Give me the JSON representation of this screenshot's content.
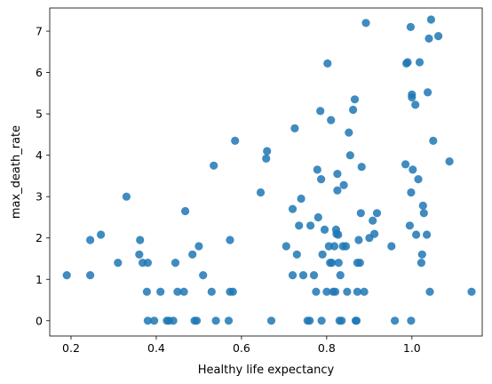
{
  "chart_data": {
    "type": "scatter",
    "title": "",
    "xlabel": "Healthy life expectancy",
    "ylabel": "max_death_rate",
    "xlim": [
      0.15,
      1.165
    ],
    "ylim": [
      -0.37,
      7.56
    ],
    "xticks": [
      0.2,
      0.4,
      0.6,
      0.8,
      1.0
    ],
    "xtick_labels": [
      "0.2",
      "0.4",
      "0.6",
      "0.8",
      "1.0"
    ],
    "yticks": [
      0,
      1,
      2,
      3,
      4,
      5,
      6,
      7
    ],
    "ytick_labels": [
      "0",
      "1",
      "2",
      "3",
      "4",
      "5",
      "6",
      "7"
    ],
    "grid": false,
    "marker_color": "#1f77b4",
    "marker_alpha": 0.85,
    "points": [
      {
        "x": 0.19,
        "y": 1.1
      },
      {
        "x": 0.245,
        "y": 1.1
      },
      {
        "x": 0.245,
        "y": 1.95
      },
      {
        "x": 0.27,
        "y": 2.08
      },
      {
        "x": 0.31,
        "y": 1.4
      },
      {
        "x": 0.33,
        "y": 3.0
      },
      {
        "x": 0.36,
        "y": 1.6
      },
      {
        "x": 0.362,
        "y": 1.95
      },
      {
        "x": 0.368,
        "y": 1.4
      },
      {
        "x": 0.378,
        "y": 0.7
      },
      {
        "x": 0.38,
        "y": 1.4
      },
      {
        "x": 0.38,
        "y": 0.0
      },
      {
        "x": 0.395,
        "y": 0.0
      },
      {
        "x": 0.41,
        "y": 0.7
      },
      {
        "x": 0.425,
        "y": 0.0
      },
      {
        "x": 0.43,
        "y": 0.0
      },
      {
        "x": 0.44,
        "y": 0.0
      },
      {
        "x": 0.445,
        "y": 1.4
      },
      {
        "x": 0.45,
        "y": 0.7
      },
      {
        "x": 0.465,
        "y": 0.7
      },
      {
        "x": 0.468,
        "y": 2.65
      },
      {
        "x": 0.485,
        "y": 1.6
      },
      {
        "x": 0.49,
        "y": 0.0
      },
      {
        "x": 0.495,
        "y": 0.0
      },
      {
        "x": 0.5,
        "y": 1.8
      },
      {
        "x": 0.51,
        "y": 1.1
      },
      {
        "x": 0.53,
        "y": 0.7
      },
      {
        "x": 0.535,
        "y": 3.75
      },
      {
        "x": 0.54,
        "y": 0.0
      },
      {
        "x": 0.57,
        "y": 0.0
      },
      {
        "x": 0.573,
        "y": 0.7
      },
      {
        "x": 0.573,
        "y": 1.95
      },
      {
        "x": 0.58,
        "y": 0.7
      },
      {
        "x": 0.585,
        "y": 4.35
      },
      {
        "x": 0.645,
        "y": 3.1
      },
      {
        "x": 0.658,
        "y": 3.92
      },
      {
        "x": 0.66,
        "y": 4.1
      },
      {
        "x": 0.67,
        "y": 0.0
      },
      {
        "x": 0.705,
        "y": 1.8
      },
      {
        "x": 0.72,
        "y": 1.1
      },
      {
        "x": 0.72,
        "y": 2.7
      },
      {
        "x": 0.725,
        "y": 4.65
      },
      {
        "x": 0.73,
        "y": 1.6
      },
      {
        "x": 0.735,
        "y": 2.3
      },
      {
        "x": 0.74,
        "y": 2.95
      },
      {
        "x": 0.745,
        "y": 1.1
      },
      {
        "x": 0.755,
        "y": 0.0
      },
      {
        "x": 0.76,
        "y": 0.0
      },
      {
        "x": 0.762,
        "y": 2.3
      },
      {
        "x": 0.77,
        "y": 1.1
      },
      {
        "x": 0.775,
        "y": 0.7
      },
      {
        "x": 0.778,
        "y": 3.65
      },
      {
        "x": 0.78,
        "y": 2.5
      },
      {
        "x": 0.785,
        "y": 5.07
      },
      {
        "x": 0.787,
        "y": 3.42
      },
      {
        "x": 0.788,
        "y": 0.0
      },
      {
        "x": 0.79,
        "y": 1.6
      },
      {
        "x": 0.795,
        "y": 2.2
      },
      {
        "x": 0.8,
        "y": 0.7
      },
      {
        "x": 0.802,
        "y": 6.22
      },
      {
        "x": 0.805,
        "y": 1.8
      },
      {
        "x": 0.808,
        "y": 1.4
      },
      {
        "x": 0.81,
        "y": 4.85
      },
      {
        "x": 0.812,
        "y": 1.4
      },
      {
        "x": 0.815,
        "y": 0.7
      },
      {
        "x": 0.818,
        "y": 1.8
      },
      {
        "x": 0.82,
        "y": 0.7
      },
      {
        "x": 0.822,
        "y": 2.2
      },
      {
        "x": 0.823,
        "y": 2.1
      },
      {
        "x": 0.825,
        "y": 3.15
      },
      {
        "x": 0.825,
        "y": 3.55
      },
      {
        "x": 0.827,
        "y": 2.08
      },
      {
        "x": 0.828,
        "y": 1.4
      },
      {
        "x": 0.83,
        "y": 0.0
      },
      {
        "x": 0.832,
        "y": 1.1
      },
      {
        "x": 0.835,
        "y": 0.0
      },
      {
        "x": 0.838,
        "y": 1.8
      },
      {
        "x": 0.84,
        "y": 3.28
      },
      {
        "x": 0.845,
        "y": 1.8
      },
      {
        "x": 0.848,
        "y": 0.7
      },
      {
        "x": 0.852,
        "y": 4.55
      },
      {
        "x": 0.855,
        "y": 4.0
      },
      {
        "x": 0.862,
        "y": 5.1
      },
      {
        "x": 0.866,
        "y": 5.35
      },
      {
        "x": 0.868,
        "y": 0.0
      },
      {
        "x": 0.87,
        "y": 0.0
      },
      {
        "x": 0.872,
        "y": 1.4
      },
      {
        "x": 0.872,
        "y": 0.7
      },
      {
        "x": 0.875,
        "y": 1.95
      },
      {
        "x": 0.878,
        "y": 1.4
      },
      {
        "x": 0.88,
        "y": 2.6
      },
      {
        "x": 0.882,
        "y": 3.72
      },
      {
        "x": 0.888,
        "y": 0.7
      },
      {
        "x": 0.892,
        "y": 7.2
      },
      {
        "x": 0.9,
        "y": 2.0
      },
      {
        "x": 0.908,
        "y": 2.42
      },
      {
        "x": 0.912,
        "y": 2.1
      },
      {
        "x": 0.918,
        "y": 2.6
      },
      {
        "x": 0.952,
        "y": 1.8
      },
      {
        "x": 0.96,
        "y": 0.0
      },
      {
        "x": 0.985,
        "y": 3.78
      },
      {
        "x": 0.987,
        "y": 6.22
      },
      {
        "x": 0.99,
        "y": 6.25
      },
      {
        "x": 0.995,
        "y": 2.3
      },
      {
        "x": 0.997,
        "y": 7.1
      },
      {
        "x": 0.998,
        "y": 3.1
      },
      {
        "x": 0.998,
        "y": 0.0
      },
      {
        "x": 1.0,
        "y": 5.4
      },
      {
        "x": 1.0,
        "y": 5.47
      },
      {
        "x": 1.002,
        "y": 3.65
      },
      {
        "x": 1.008,
        "y": 5.22
      },
      {
        "x": 1.01,
        "y": 2.08
      },
      {
        "x": 1.015,
        "y": 3.42
      },
      {
        "x": 1.018,
        "y": 6.25
      },
      {
        "x": 1.022,
        "y": 1.4
      },
      {
        "x": 1.024,
        "y": 1.6
      },
      {
        "x": 1.026,
        "y": 2.78
      },
      {
        "x": 1.028,
        "y": 2.6
      },
      {
        "x": 1.035,
        "y": 2.08
      },
      {
        "x": 1.037,
        "y": 5.52
      },
      {
        "x": 1.04,
        "y": 6.82
      },
      {
        "x": 1.042,
        "y": 0.7
      },
      {
        "x": 1.045,
        "y": 7.28
      },
      {
        "x": 1.05,
        "y": 4.35
      },
      {
        "x": 1.062,
        "y": 6.88
      },
      {
        "x": 1.088,
        "y": 3.85
      },
      {
        "x": 1.14,
        "y": 0.7
      }
    ]
  }
}
